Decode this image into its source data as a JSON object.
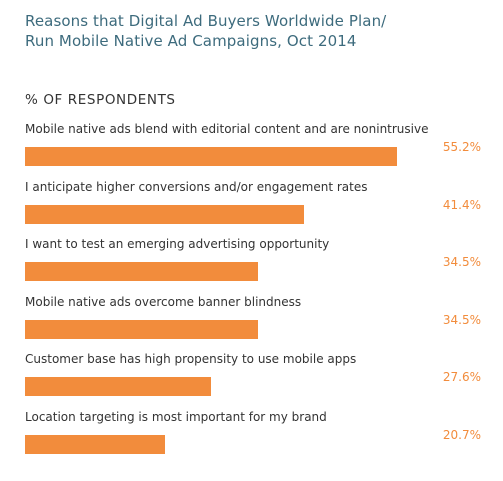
{
  "header": {
    "title_line1": "Reasons that Digital Ad Buyers Worldwide Plan/",
    "title_line2": "Run Mobile Native Ad Campaigns, Oct 2014",
    "subhead": "% OF RESPONDENTS"
  },
  "colors": {
    "bar": "#f28c3c",
    "title": "#3d6b7d",
    "text": "#333333",
    "value_label": "#f28c3c"
  },
  "chart_data": {
    "type": "bar",
    "orientation": "horizontal",
    "title": "Reasons that Digital Ad Buyers Worldwide Plan/ Run Mobile Native Ad Campaigns, Oct 2014",
    "ylabel": "% OF RESPONDENTS",
    "categories": [
      "Mobile native ads blend with editorial content and are nonintrusive",
      "I anticipate higher conversions and/or engagement rates",
      "I want to test an emerging advertising opportunity",
      "Mobile native ads overcome banner blindness",
      "Customer base has high propensity to use mobile apps",
      "Location targeting is most important for my brand"
    ],
    "values": [
      55.2,
      41.4,
      34.5,
      34.5,
      27.6,
      20.7
    ],
    "value_labels": [
      "55.2%",
      "41.4%",
      "34.5%",
      "34.5%",
      "27.6%",
      "20.7%"
    ],
    "xlim": [
      0,
      55.2
    ],
    "grid": false,
    "legend": "none"
  }
}
